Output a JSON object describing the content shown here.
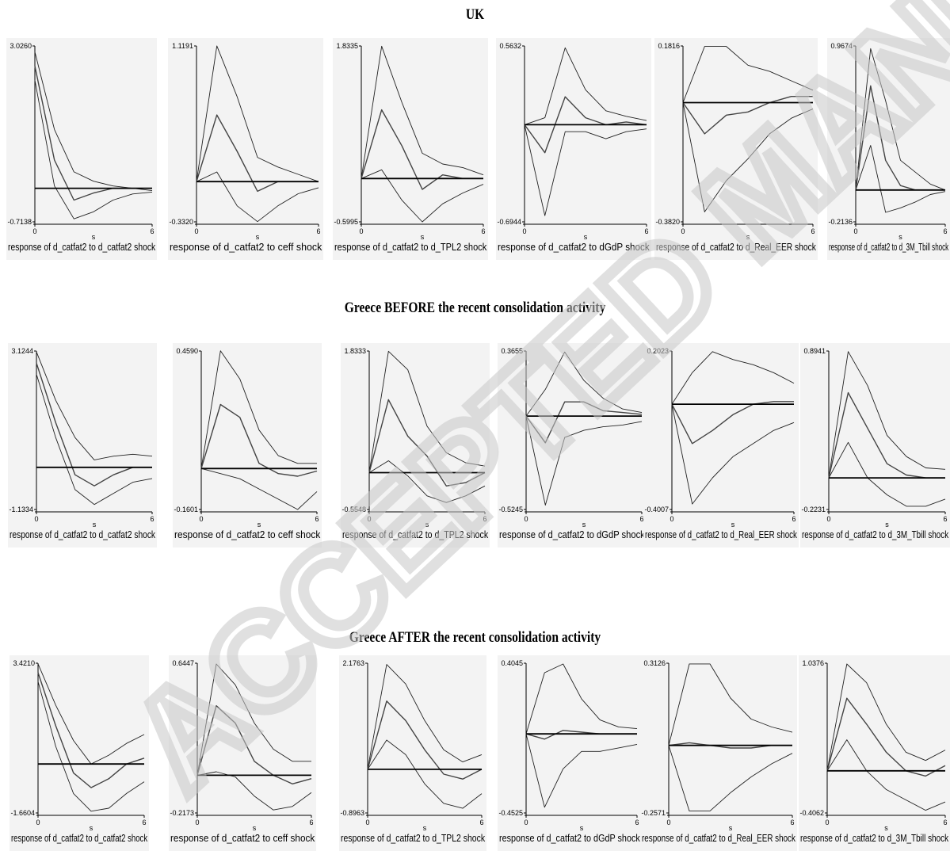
{
  "sections": [
    {
      "title": "UK"
    },
    {
      "title": "Greece BEFORE the recent consolidation activity"
    },
    {
      "title": "Greece AFTER the recent consolidation activity"
    }
  ],
  "watermark": {
    "text": "ACCEPTED MANUSCRIPT",
    "color": "#c8c8c8"
  },
  "chart_data": [
    {
      "type": "line",
      "group": "UK",
      "title": "response of d_catfat2 to d_catfat2 shock",
      "xlabel": "s",
      "ylim": [
        -0.7138,
        3.026
      ],
      "x": [
        0,
        1,
        2,
        3,
        4,
        5,
        6
      ],
      "series": [
        {
          "values": [
            2.9,
            1.25,
            0.35,
            0.15,
            0.05,
            0.0,
            -0.05
          ]
        },
        {
          "values": [
            2.6,
            0.6,
            -0.25,
            -0.1,
            0.0,
            0.0,
            0.0
          ]
        },
        {
          "values": [
            2.3,
            0.05,
            -0.65,
            -0.5,
            -0.25,
            -0.12,
            -0.08
          ]
        },
        {
          "values": [
            0,
            0,
            0,
            0,
            0,
            0,
            0
          ]
        }
      ]
    },
    {
      "type": "line",
      "group": "UK",
      "title": "response of d_catfat2 to ceff shock",
      "xlabel": "s",
      "ylim": [
        -0.332,
        1.1191
      ],
      "x": [
        0,
        1,
        2,
        3,
        4,
        5,
        6
      ],
      "series": [
        {
          "values": [
            0,
            1.12,
            0.7,
            0.2,
            0.12,
            0.06,
            0.0
          ]
        },
        {
          "values": [
            0,
            0.55,
            0.25,
            -0.08,
            0.0,
            0.0,
            0.0
          ]
        },
        {
          "values": [
            0,
            0.08,
            -0.2,
            -0.33,
            -0.2,
            -0.1,
            -0.05
          ]
        },
        {
          "values": [
            0,
            0,
            0,
            0,
            0,
            0,
            0
          ]
        }
      ]
    },
    {
      "type": "line",
      "group": "UK",
      "title": "response of d_catfat2 to d_TPL2 shock",
      "xlabel": "s",
      "ylim": [
        -0.5995,
        1.8335
      ],
      "x": [
        0,
        1,
        2,
        3,
        4,
        5,
        6
      ],
      "series": [
        {
          "values": [
            0,
            1.83,
            1.05,
            0.35,
            0.2,
            0.15,
            0.05
          ]
        },
        {
          "values": [
            0,
            0.95,
            0.45,
            -0.15,
            0.05,
            0.0,
            0.0
          ]
        },
        {
          "values": [
            0,
            0.12,
            -0.3,
            -0.6,
            -0.35,
            -0.2,
            -0.08
          ]
        },
        {
          "values": [
            0,
            0,
            0,
            0,
            0,
            0,
            0
          ]
        }
      ]
    },
    {
      "type": "line",
      "group": "UK",
      "title": "response of d_catfat2 to dGdP shock",
      "xlabel": "s",
      "ylim": [
        -0.6944,
        0.5632
      ],
      "x": [
        0,
        1,
        2,
        3,
        4,
        5,
        6
      ],
      "series": [
        {
          "values": [
            0,
            0.05,
            0.55,
            0.25,
            0.1,
            0.06,
            0.03
          ]
        },
        {
          "values": [
            0,
            -0.2,
            0.2,
            0.05,
            0.0,
            0.02,
            0.0
          ]
        },
        {
          "values": [
            0,
            -0.65,
            -0.05,
            -0.05,
            -0.1,
            -0.05,
            -0.03
          ]
        },
        {
          "values": [
            0,
            0,
            0,
            0,
            0,
            0,
            0
          ]
        }
      ]
    },
    {
      "type": "line",
      "group": "UK",
      "title": "response of d_catfat2 to d_Real_EER shock",
      "xlabel": "s",
      "ylim": [
        -0.382,
        0.1816
      ],
      "x": [
        0,
        1,
        2,
        3,
        4,
        5,
        6
      ],
      "series": [
        {
          "values": [
            0,
            0.18,
            0.18,
            0.12,
            0.1,
            0.07,
            0.04
          ]
        },
        {
          "values": [
            0,
            -0.1,
            -0.04,
            -0.03,
            0.0,
            0.02,
            0.02
          ]
        },
        {
          "values": [
            0,
            -0.35,
            -0.25,
            -0.18,
            -0.1,
            -0.05,
            -0.02
          ]
        },
        {
          "values": [
            0,
            0,
            0,
            0,
            0,
            0,
            0
          ]
        }
      ]
    },
    {
      "type": "line",
      "group": "UK",
      "title": "response of d_catfat2 to d_3M_Tbill shock",
      "xlabel": "s",
      "ylim": [
        -0.2136,
        0.9674
      ],
      "x": [
        0,
        1,
        2,
        3,
        4,
        5,
        6
      ],
      "series": [
        {
          "values": [
            0,
            0.95,
            0.6,
            0.2,
            0.12,
            0.04,
            0.0
          ]
        },
        {
          "values": [
            0,
            0.7,
            0.2,
            0.03,
            0.0,
            0.0,
            0.0
          ]
        },
        {
          "values": [
            0,
            0.3,
            -0.15,
            -0.12,
            -0.08,
            -0.03,
            -0.01
          ]
        },
        {
          "values": [
            0,
            0,
            0,
            0,
            0,
            0,
            0
          ]
        }
      ]
    },
    {
      "type": "line",
      "group": "Greece BEFORE",
      "title": "response of d_catfat2 to d_catfat2 shock",
      "xlabel": "s",
      "ylim": [
        -1.1334,
        3.1244
      ],
      "x": [
        0,
        1,
        2,
        3,
        4,
        5,
        6
      ],
      "series": [
        {
          "values": [
            3.1,
            1.8,
            0.8,
            0.2,
            0.3,
            0.35,
            0.3
          ]
        },
        {
          "values": [
            2.8,
            1.2,
            -0.2,
            -0.5,
            -0.2,
            0.0,
            0.0
          ]
        },
        {
          "values": [
            2.5,
            0.8,
            -0.6,
            -1.0,
            -0.7,
            -0.4,
            -0.3
          ]
        },
        {
          "values": [
            0,
            0,
            0,
            0,
            0,
            0,
            0
          ]
        }
      ]
    },
    {
      "type": "line",
      "group": "Greece BEFORE",
      "title": "response of d_catfat2 to ceff shock",
      "xlabel": "s",
      "ylim": [
        -0.1601,
        0.459
      ],
      "x": [
        0,
        1,
        2,
        3,
        4,
        5,
        6
      ],
      "series": [
        {
          "values": [
            0,
            0.46,
            0.35,
            0.15,
            0.05,
            0.02,
            0.02
          ]
        },
        {
          "values": [
            0,
            0.25,
            0.2,
            0.02,
            -0.02,
            -0.03,
            -0.01
          ]
        },
        {
          "values": [
            0,
            -0.02,
            -0.04,
            -0.08,
            -0.12,
            -0.16,
            -0.09
          ]
        },
        {
          "values": [
            0,
            0,
            0,
            0,
            0,
            0,
            0
          ]
        }
      ]
    },
    {
      "type": "line",
      "group": "Greece BEFORE",
      "title": "response of d_catfat2 to d_TPL2 shock",
      "xlabel": "s",
      "ylim": [
        -0.5548,
        1.8333
      ],
      "x": [
        0,
        1,
        2,
        3,
        4,
        5,
        6
      ],
      "series": [
        {
          "values": [
            0,
            1.83,
            1.55,
            0.7,
            0.3,
            0.15,
            0.1
          ]
        },
        {
          "values": [
            0,
            1.1,
            0.55,
            0.25,
            -0.2,
            -0.15,
            0.0
          ]
        },
        {
          "values": [
            0,
            0.18,
            -0.05,
            -0.35,
            -0.45,
            -0.35,
            -0.2
          ]
        },
        {
          "values": [
            0,
            0,
            0,
            0,
            0,
            0,
            0
          ]
        }
      ]
    },
    {
      "type": "line",
      "group": "Greece BEFORE",
      "title": "response of d_catfat2 to dGdP shock",
      "xlabel": "s",
      "ylim": [
        -0.5245,
        0.3655
      ],
      "x": [
        0,
        1,
        2,
        3,
        4,
        5,
        6
      ],
      "series": [
        {
          "values": [
            0,
            0.15,
            0.36,
            0.2,
            0.1,
            0.04,
            0.02
          ]
        },
        {
          "values": [
            0,
            -0.15,
            0.08,
            0.08,
            0.03,
            0.02,
            0.01
          ]
        },
        {
          "values": [
            0,
            -0.5,
            -0.12,
            -0.08,
            -0.06,
            -0.05,
            -0.03
          ]
        },
        {
          "values": [
            0,
            0,
            0,
            0,
            0,
            0,
            0
          ]
        }
      ]
    },
    {
      "type": "line",
      "group": "Greece BEFORE",
      "title": "response of d_catfat2 to d_Real_EER shock",
      "xlabel": "s",
      "ylim": [
        -0.4007,
        0.2023
      ],
      "x": [
        0,
        1,
        2,
        3,
        4,
        5,
        6
      ],
      "series": [
        {
          "values": [
            0,
            0.12,
            0.2,
            0.17,
            0.15,
            0.12,
            0.08
          ]
        },
        {
          "values": [
            0,
            -0.15,
            -0.1,
            -0.04,
            0.0,
            0.01,
            0.01
          ]
        },
        {
          "values": [
            0,
            -0.38,
            -0.28,
            -0.2,
            -0.15,
            -0.1,
            -0.07
          ]
        },
        {
          "values": [
            0,
            0,
            0,
            0,
            0,
            0,
            0
          ]
        }
      ]
    },
    {
      "type": "line",
      "group": "Greece BEFORE",
      "title": "response of d_catfat2 to d_3M_Tbill shock",
      "xlabel": "s",
      "ylim": [
        -0.2231,
        0.8941
      ],
      "x": [
        0,
        1,
        2,
        3,
        4,
        5,
        6
      ],
      "series": [
        {
          "values": [
            0,
            0.89,
            0.65,
            0.3,
            0.15,
            0.07,
            0.06
          ]
        },
        {
          "values": [
            0,
            0.6,
            0.35,
            0.1,
            0.02,
            0.0,
            0.0
          ]
        },
        {
          "values": [
            0,
            0.25,
            0.0,
            -0.12,
            -0.2,
            -0.2,
            -0.15
          ]
        },
        {
          "values": [
            0,
            0,
            0,
            0,
            0,
            0,
            0
          ]
        }
      ]
    },
    {
      "type": "line",
      "group": "Greece AFTER",
      "title": "response of d_catfat2 to d_catfat2 shock",
      "xlabel": "s",
      "ylim": [
        -1.6604,
        3.421
      ],
      "x": [
        0,
        1,
        2,
        3,
        4,
        5,
        6
      ],
      "series": [
        {
          "values": [
            3.4,
            2.0,
            0.8,
            0.0,
            0.3,
            0.7,
            1.0
          ]
        },
        {
          "values": [
            3.1,
            1.3,
            -0.3,
            -0.8,
            -0.5,
            0.0,
            0.2
          ]
        },
        {
          "values": [
            2.8,
            0.6,
            -1.0,
            -1.6,
            -1.5,
            -1.0,
            -0.6
          ]
        },
        {
          "values": [
            0,
            0,
            0,
            0,
            0,
            0,
            0
          ]
        }
      ]
    },
    {
      "type": "line",
      "group": "Greece AFTER",
      "title": "response of d_catfat2 to ceff shock",
      "xlabel": "s",
      "ylim": [
        -0.2173,
        0.6447
      ],
      "x": [
        0,
        1,
        2,
        3,
        4,
        5,
        6
      ],
      "series": [
        {
          "values": [
            0,
            0.64,
            0.52,
            0.3,
            0.15,
            0.08,
            0.08
          ]
        },
        {
          "values": [
            0,
            0.4,
            0.3,
            0.08,
            0.0,
            -0.05,
            -0.02
          ]
        },
        {
          "values": [
            0,
            0.02,
            -0.01,
            -0.12,
            -0.2,
            -0.18,
            -0.1
          ]
        },
        {
          "values": [
            0,
            0,
            0,
            0,
            0,
            0,
            0
          ]
        }
      ]
    },
    {
      "type": "line",
      "group": "Greece AFTER",
      "title": "response of d_catfat2 to d_TPL2 shock",
      "xlabel": "s",
      "ylim": [
        -0.8963,
        2.1763
      ],
      "x": [
        0,
        1,
        2,
        3,
        4,
        5,
        6
      ],
      "series": [
        {
          "values": [
            0,
            2.15,
            1.75,
            1.0,
            0.4,
            0.15,
            0.3
          ]
        },
        {
          "values": [
            0,
            1.4,
            1.0,
            0.4,
            -0.1,
            -0.2,
            0.0
          ]
        },
        {
          "values": [
            0,
            0.6,
            0.3,
            -0.3,
            -0.7,
            -0.8,
            -0.5
          ]
        },
        {
          "values": [
            0,
            0,
            0,
            0,
            0,
            0,
            0
          ]
        }
      ]
    },
    {
      "type": "line",
      "group": "Greece AFTER",
      "title": "response of d_catfat2 to dGdP shock",
      "xlabel": "s",
      "ylim": [
        -0.4525,
        0.4045
      ],
      "x": [
        0,
        1,
        2,
        3,
        4,
        5,
        6
      ],
      "series": [
        {
          "values": [
            0,
            0.35,
            0.4,
            0.2,
            0.08,
            0.04,
            0.03
          ]
        },
        {
          "values": [
            0,
            -0.03,
            0.02,
            0.01,
            0.0,
            0.0,
            0.0
          ]
        },
        {
          "values": [
            0,
            -0.42,
            -0.2,
            -0.1,
            -0.1,
            -0.08,
            -0.06
          ]
        },
        {
          "values": [
            0,
            0,
            0,
            0,
            0,
            0,
            0
          ]
        }
      ]
    },
    {
      "type": "line",
      "group": "Greece AFTER",
      "title": "response of d_catfat2 to d_Real_EER shock",
      "xlabel": "s",
      "ylim": [
        -0.2571,
        0.3126
      ],
      "x": [
        0,
        1,
        2,
        3,
        4,
        5,
        6
      ],
      "series": [
        {
          "values": [
            0,
            0.31,
            0.31,
            0.18,
            0.1,
            0.07,
            0.05
          ]
        },
        {
          "values": [
            0,
            0.01,
            0.0,
            -0.01,
            -0.01,
            0.0,
            0.0
          ]
        },
        {
          "values": [
            0,
            -0.25,
            -0.25,
            -0.18,
            -0.12,
            -0.07,
            -0.03
          ]
        },
        {
          "values": [
            0,
            0,
            0,
            0,
            0,
            0,
            0
          ]
        }
      ]
    },
    {
      "type": "line",
      "group": "Greece AFTER",
      "title": "response of d_catfat2 to d_3M_Tbill shock",
      "xlabel": "s",
      "ylim": [
        -0.4062,
        1.0376
      ],
      "x": [
        0,
        1,
        2,
        3,
        4,
        5,
        6
      ],
      "series": [
        {
          "values": [
            0,
            1.03,
            0.85,
            0.45,
            0.18,
            0.1,
            0.2
          ]
        },
        {
          "values": [
            0,
            0.7,
            0.45,
            0.18,
            0.0,
            -0.05,
            0.05
          ]
        },
        {
          "values": [
            0,
            0.3,
            0.0,
            -0.18,
            -0.28,
            -0.38,
            -0.3
          ]
        },
        {
          "values": [
            0,
            0,
            0,
            0,
            0,
            0,
            0
          ]
        }
      ]
    }
  ]
}
